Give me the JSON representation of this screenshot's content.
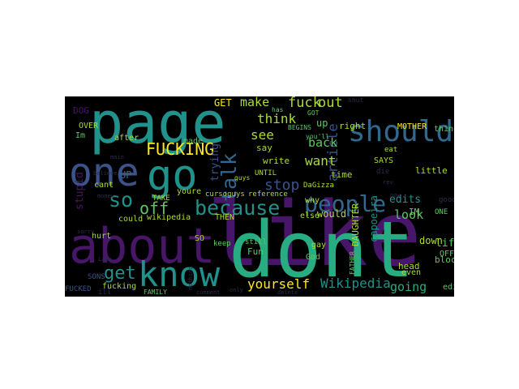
{
  "palette": {
    "background": "#000000",
    "purple": "#471669",
    "indigo": "#3b528b",
    "blue": "#31688e",
    "teal": "#21918c",
    "teal_light": "#27ad81",
    "green": "#5dc863",
    "lime": "#aadc32",
    "yellow": "#fde725",
    "dark": "#2c2c4a"
  },
  "words": [
    {
      "text": "like",
      "color": "purple"
    },
    {
      "text": "dont",
      "color": "teal_light"
    },
    {
      "text": "page",
      "color": "teal"
    },
    {
      "text": "about",
      "color": "purple"
    },
    {
      "text": "one",
      "color": "indigo"
    },
    {
      "text": "go",
      "color": "teal"
    },
    {
      "text": "should",
      "color": "blue"
    },
    {
      "text": "know",
      "color": "teal"
    },
    {
      "text": "people",
      "color": "blue"
    },
    {
      "text": "because",
      "color": "teal"
    },
    {
      "text": "FUCKING",
      "color": "yellow"
    },
    {
      "text": "get",
      "color": "teal"
    },
    {
      "text": "so",
      "color": "teal"
    },
    {
      "text": "off",
      "color": "green"
    },
    {
      "text": "talk",
      "color": "blue"
    },
    {
      "text": "stop",
      "color": "indigo"
    },
    {
      "text": "make",
      "color": "lime"
    },
    {
      "text": "fuck",
      "color": "lime"
    },
    {
      "text": "out",
      "color": "lime"
    },
    {
      "text": "think",
      "color": "lime"
    },
    {
      "text": "see",
      "color": "lime"
    },
    {
      "text": "yourself",
      "color": "yellow"
    },
    {
      "text": "Wikipedia",
      "color": "teal"
    },
    {
      "text": "going",
      "color": "teal_light"
    },
    {
      "text": "article",
      "color": "indigo"
    },
    {
      "text": "edits",
      "color": "teal"
    },
    {
      "text": "look",
      "color": "green"
    },
    {
      "text": "life",
      "color": "green"
    },
    {
      "text": "want",
      "color": "lime"
    },
    {
      "text": "back",
      "color": "green"
    },
    {
      "text": "stupid",
      "color": "purple"
    },
    {
      "text": "trying",
      "color": "indigo"
    },
    {
      "text": "UP",
      "color": "blue"
    },
    {
      "text": "GET",
      "color": "yellow"
    },
    {
      "text": "DOG",
      "color": "purple"
    },
    {
      "text": "OVER",
      "color": "lime"
    },
    {
      "text": "Im",
      "color": "green"
    },
    {
      "text": "after",
      "color": "lime"
    },
    {
      "text": "made",
      "color": "green"
    },
    {
      "text": "up",
      "color": "green"
    },
    {
      "text": "say",
      "color": "lime"
    },
    {
      "text": "write",
      "color": "lime"
    },
    {
      "text": "right",
      "color": "lime"
    },
    {
      "text": "MOTHER",
      "color": "yellow"
    },
    {
      "text": "things",
      "color": "green"
    },
    {
      "text": "little",
      "color": "lime"
    },
    {
      "text": "SAYS",
      "color": "lime"
    },
    {
      "text": "time",
      "color": "lime"
    },
    {
      "text": "eat",
      "color": "lime"
    },
    {
      "text": "die",
      "color": "dark"
    },
    {
      "text": "IM",
      "color": "green"
    },
    {
      "text": "ONE",
      "color": "green"
    },
    {
      "text": "good",
      "color": "dark"
    },
    {
      "text": "would",
      "color": "lime"
    },
    {
      "text": "down",
      "color": "lime"
    },
    {
      "text": "OFF",
      "color": "green"
    },
    {
      "text": "block",
      "color": "green"
    },
    {
      "text": "even",
      "color": "lime"
    },
    {
      "text": "head",
      "color": "lime"
    },
    {
      "text": "edit",
      "color": "green"
    },
    {
      "text": "capoeira",
      "color": "teal"
    },
    {
      "text": "DAUGHTER",
      "color": "lime"
    },
    {
      "text": "God",
      "color": "green"
    },
    {
      "text": "gay",
      "color": "lime"
    },
    {
      "text": "else",
      "color": "lime"
    },
    {
      "text": "why",
      "color": "lime"
    },
    {
      "text": "reference",
      "color": "lime"
    },
    {
      "text": "DaGizza",
      "color": "lime"
    },
    {
      "text": "guys",
      "color": "lime"
    },
    {
      "text": "youre",
      "color": "lime"
    },
    {
      "text": "cursoguys",
      "color": "lime"
    },
    {
      "text": "UNTIL",
      "color": "lime"
    },
    {
      "text": "Fun",
      "color": "green"
    },
    {
      "text": "still",
      "color": "green"
    },
    {
      "text": "keep",
      "color": "green"
    },
    {
      "text": "SO",
      "color": "lime"
    },
    {
      "text": "THEN",
      "color": "lime"
    },
    {
      "text": "wikipedia",
      "color": "lime"
    },
    {
      "text": "could",
      "color": "lime"
    },
    {
      "text": "TAKE",
      "color": "lime"
    },
    {
      "text": "cant",
      "color": "lime"
    },
    {
      "text": "hurt",
      "color": "lime"
    },
    {
      "text": "fucking",
      "color": "lime"
    },
    {
      "text": "FUCKED",
      "color": "indigo"
    },
    {
      "text": "SONS",
      "color": "indigo"
    },
    {
      "text": "ill",
      "color": "dark"
    },
    {
      "text": "FAMILY",
      "color": "green"
    },
    {
      "text": "comment",
      "color": "dark"
    },
    {
      "text": "only",
      "color": "dark"
    },
    {
      "text": "delete",
      "color": "dark"
    },
    {
      "text": "Lame",
      "color": "dark"
    },
    {
      "text": "sorry",
      "color": "dark"
    },
    {
      "text": "believe",
      "color": "dark"
    },
    {
      "text": "money",
      "color": "dark"
    },
    {
      "text": "main",
      "color": "dark"
    },
    {
      "text": "BEGINS",
      "color": "green"
    },
    {
      "text": "GOT",
      "color": "green"
    },
    {
      "text": "you'll",
      "color": "green"
    },
    {
      "text": "FATHER",
      "color": "green"
    },
    {
      "text": "other",
      "color": "dark"
    },
    {
      "text": "now",
      "color": "dark"
    },
    {
      "text": "rev",
      "color": "dark"
    },
    {
      "text": "has",
      "color": "green"
    },
    {
      "text": "nothing",
      "color": "dark"
    },
    {
      "text": "shut",
      "color": "dark"
    }
  ]
}
